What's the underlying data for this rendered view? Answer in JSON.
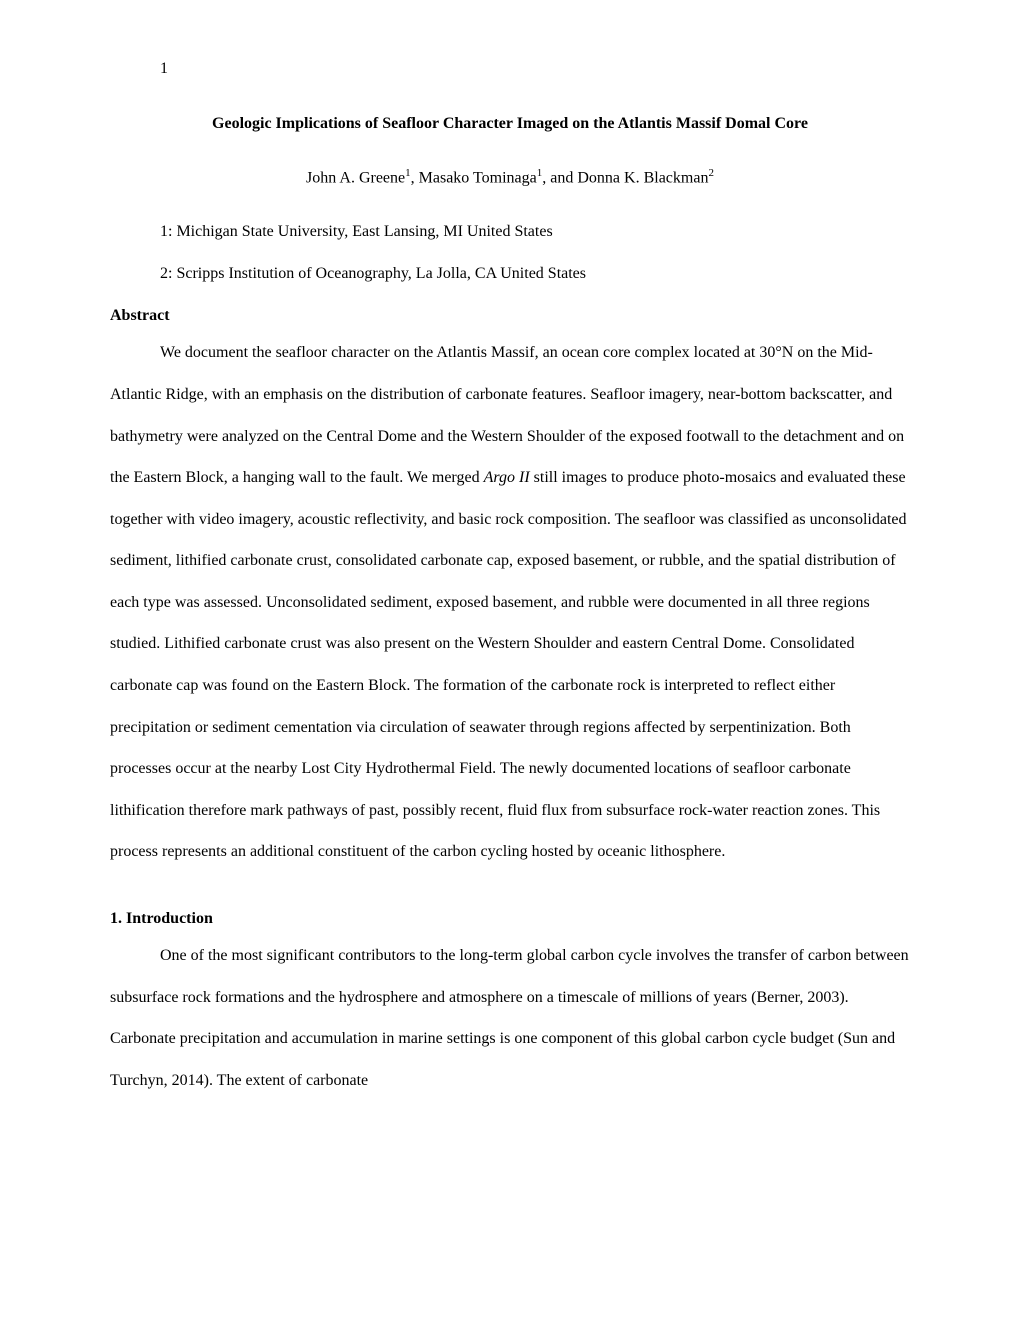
{
  "page_number": "1",
  "title": "Geologic Implications of Seafloor Character Imaged on the Atlantis Massif Domal Core",
  "authors_prefix": "John A. Greene",
  "authors_sup1": "1",
  "authors_mid1": ", Masako Tominaga",
  "authors_sup2": "1",
  "authors_mid2": ", and Donna K. Blackman",
  "authors_sup3": "2",
  "affiliation1": "1: Michigan State University, East Lansing, MI United States",
  "affiliation2": "2: Scripps Institution of Oceanography, La Jolla, CA United States",
  "abstract_heading": "Abstract",
  "abstract_text_part1": "We document the seafloor character on the Atlantis Massif, an ocean core complex located at 30°N on the Mid-Atlantic Ridge, with an emphasis on the distribution of carbonate features. Seafloor imagery, near-bottom backscatter, and bathymetry were analyzed on the Central Dome and the Western Shoulder of the exposed footwall to the detachment and on the Eastern Block, a hanging wall to the fault. We merged ",
  "abstract_italic": "Argo II",
  "abstract_text_part2": " still images to produce photo-mosaics and evaluated these together with video imagery, acoustic reflectivity, and basic rock composition. The seafloor was classified as unconsolidated sediment, lithified carbonate crust, consolidated carbonate cap, exposed basement, or rubble, and the spatial distribution of each type was assessed. Unconsolidated sediment, exposed basement, and rubble were documented in all three regions studied. Lithified carbonate crust was also present on the Western Shoulder and eastern Central Dome. Consolidated carbonate cap was found on the Eastern Block. The formation of the carbonate rock is interpreted to reflect either precipitation or sediment cementation via circulation of seawater through regions affected by serpentinization. Both processes occur at the nearby Lost City Hydrothermal Field. The newly documented locations of seafloor carbonate lithification therefore mark pathways of past, possibly recent, fluid flux from subsurface rock-water reaction zones. This process represents an additional constituent of the carbon cycling hosted by oceanic lithosphere.",
  "intro_heading": "1. Introduction",
  "intro_text": "One of the most significant contributors to the long-term global carbon cycle involves the transfer of carbon between subsurface rock formations and the hydrosphere and atmosphere on a timescale of millions of years (Berner, 2003). Carbonate precipitation and accumulation in marine settings is one component of this global carbon cycle budget (Sun and Turchyn, 2014). The extent of carbonate"
}
